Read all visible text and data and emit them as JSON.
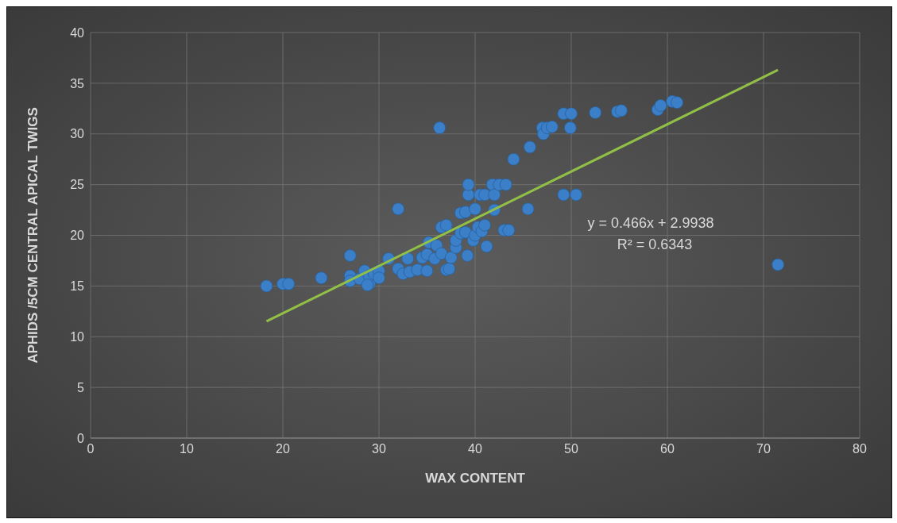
{
  "chart_data": {
    "type": "scatter",
    "xlabel": "WAX CONTENT",
    "ylabel": "APHIDS /5CM CENTRAL APICAL TWIGS",
    "xlim": [
      0,
      80
    ],
    "xticks": [
      0,
      10,
      20,
      30,
      40,
      50,
      60,
      70,
      80
    ],
    "ylim": [
      0,
      40
    ],
    "yticks": [
      0,
      5,
      10,
      15,
      20,
      25,
      30,
      35,
      40
    ],
    "grid": true,
    "legend": false,
    "marker": "circle",
    "annotations": [
      "y = 0.466x + 2.9938",
      "R² = 0.6343"
    ],
    "series": [
      {
        "color": "#3a7fc8",
        "x": [
          18.3,
          20.0,
          20.6,
          24,
          27,
          27,
          27,
          28,
          28.5,
          29,
          29,
          29.5,
          30,
          30,
          28.8,
          31,
          32,
          32,
          32.5,
          33,
          33.2,
          34,
          34.5,
          35,
          35,
          35.2,
          35.8,
          36,
          36.5,
          36.3,
          36.5,
          37,
          37,
          37.3,
          37.5,
          38,
          38,
          38.5,
          38.5,
          39,
          39,
          39.2,
          39.3,
          39.3,
          39.8,
          40,
          40,
          40.3,
          40.5,
          40.7,
          41,
          41,
          41.2,
          41.8,
          42,
          42,
          42.5,
          43,
          43.2,
          43.5,
          44,
          45.5,
          45.7,
          47,
          47.1,
          47.5,
          48,
          49.2,
          49.2,
          50,
          49.9,
          50.5,
          52.5,
          54.8,
          55.2,
          59,
          59.3,
          60.5,
          61,
          71.5
        ],
        "values": [
          15.0,
          15.2,
          15.2,
          15.8,
          18.0,
          16.0,
          15.5,
          15.7,
          16.5,
          15.2,
          16.0,
          16.2,
          16.5,
          15.8,
          15.1,
          17.7,
          22.6,
          16.7,
          16.2,
          17.7,
          16.4,
          16.6,
          17.8,
          18.1,
          16.5,
          19.3,
          17.7,
          19.0,
          18.2,
          30.6,
          20.8,
          21.0,
          16.6,
          16.7,
          17.8,
          18.8,
          19.5,
          20.2,
          22.2,
          22.3,
          20.3,
          18.0,
          24.0,
          25.0,
          19.5,
          22.6,
          20.0,
          20.8,
          24.0,
          20.4,
          21.0,
          24.0,
          18.9,
          25.0,
          22.5,
          24.0,
          25.0,
          20.5,
          25.0,
          20.5,
          27.5,
          22.6,
          28.7,
          30.6,
          30.0,
          30.6,
          30.7,
          32.0,
          24.0,
          32.0,
          30.6,
          24.0,
          32.1,
          32.2,
          32.3,
          32.4,
          32.8,
          33.2,
          33.1,
          17.1
        ]
      },
      {
        "type": "line",
        "color": "#92c047",
        "x": [
          18.3,
          71.5
        ],
        "values": [
          11.52,
          36.31
        ],
        "line_style": "solid",
        "marker": "none"
      }
    ]
  }
}
